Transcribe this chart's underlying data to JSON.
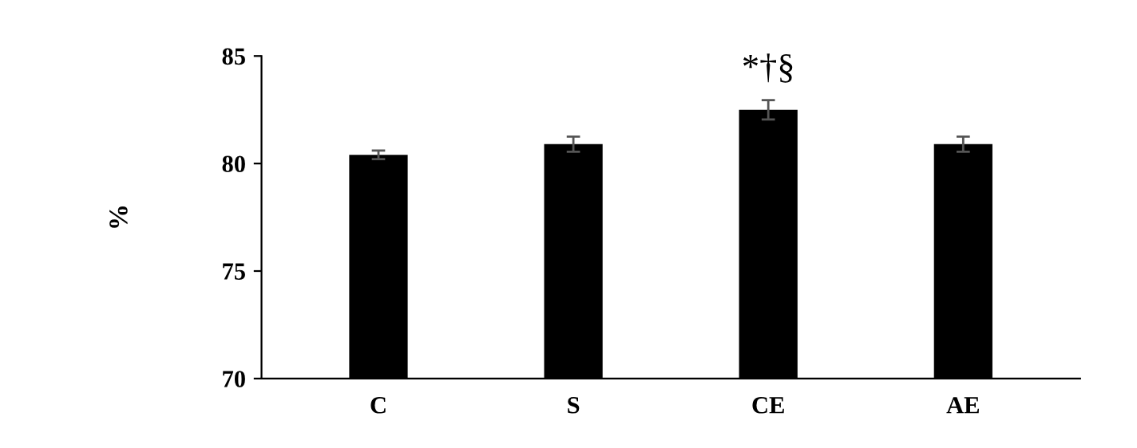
{
  "chart_data": {
    "type": "bar",
    "ylabel": "%",
    "categories": [
      "C",
      "S",
      "CE",
      "AE"
    ],
    "values": [
      80.4,
      80.9,
      82.5,
      80.9
    ],
    "errors": [
      0.2,
      0.35,
      0.45,
      0.35
    ],
    "color": "#000000",
    "ylim": [
      70,
      85
    ],
    "yticks": [
      70,
      75,
      80,
      85
    ],
    "grid": false,
    "legend": false,
    "annotations": [
      {
        "text": "*†§",
        "x": "CE",
        "y": 83.0
      }
    ]
  }
}
